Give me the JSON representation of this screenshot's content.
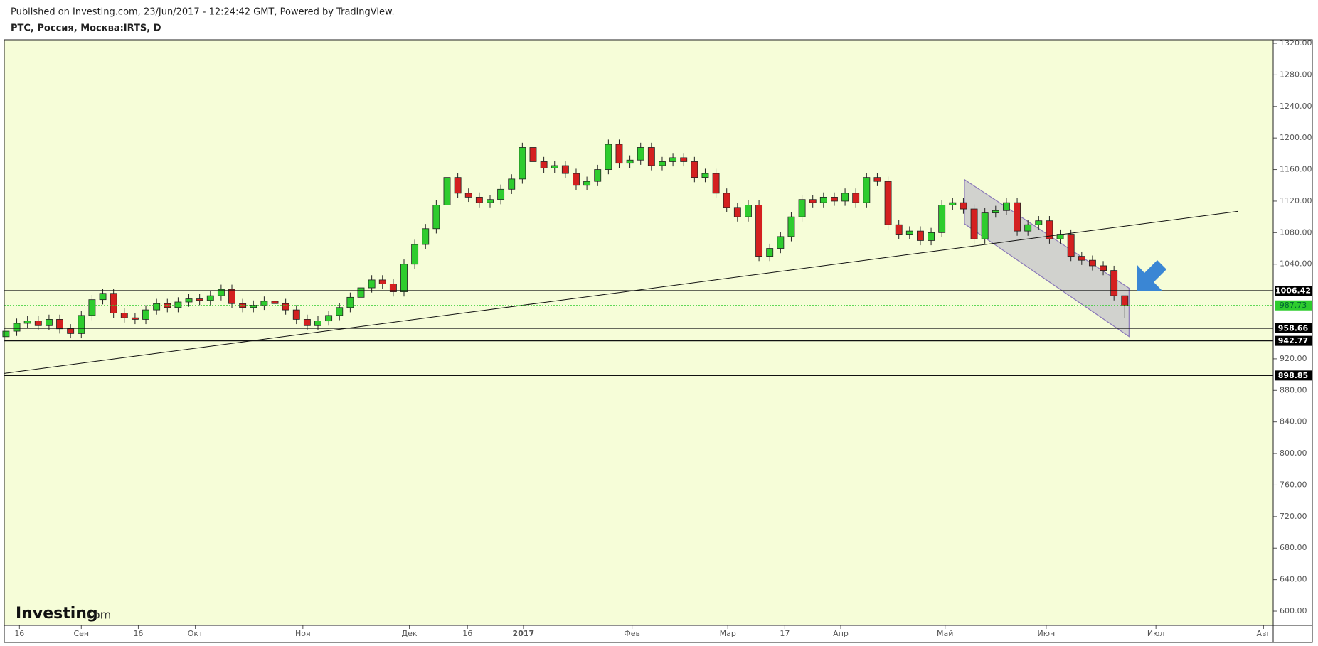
{
  "chart_data": {
    "type": "candlestick",
    "source": "Published on Investing.com, 23/Jun/2017 - 12:24:42 GMT, Powered by TradingView.",
    "title": "РТС, Россия, Москва:IRTS, D",
    "logo_text": "Investing",
    "logo_suffix": ".com",
    "up_color": "#2ecc2e",
    "down_color": "#d42020",
    "background": "#f6fdd8",
    "open": [
      948,
      955,
      965,
      968,
      962,
      970,
      958,
      952,
      975,
      995,
      1003,
      978,
      972,
      970,
      982,
      990,
      985,
      992,
      996,
      994,
      1000,
      1008,
      990,
      985,
      988,
      993,
      990,
      982,
      970,
      962,
      968,
      975,
      985,
      998,
      1010,
      1020,
      1015,
      1005,
      1040,
      1065,
      1085,
      1115,
      1150,
      1130,
      1125,
      1118,
      1122,
      1135,
      1148,
      1188,
      1170,
      1162,
      1165,
      1155,
      1140,
      1145,
      1160,
      1192,
      1168,
      1172,
      1188,
      1165,
      1170,
      1175,
      1170,
      1150,
      1155,
      1130,
      1112,
      1100,
      1115,
      1050,
      1060,
      1075,
      1100,
      1122,
      1118,
      1125,
      1120,
      1130,
      1118,
      1150,
      1145,
      1090,
      1078,
      1082,
      1070,
      1080,
      1115,
      1118,
      1110,
      1072,
      1105,
      1108,
      1118,
      1082,
      1090,
      1095,
      1072,
      1078,
      1050,
      1045,
      1038,
      1032,
      1000
    ],
    "high": [
      961,
      971,
      974,
      974,
      976,
      976,
      964,
      981,
      1001,
      1009,
      1009,
      984,
      978,
      988,
      996,
      996,
      998,
      1002,
      1002,
      1006,
      1014,
      1014,
      996,
      994,
      999,
      999,
      996,
      988,
      976,
      974,
      981,
      991,
      1004,
      1016,
      1026,
      1026,
      1021,
      1046,
      1071,
      1091,
      1121,
      1158,
      1156,
      1136,
      1131,
      1128,
      1141,
      1154,
      1194,
      1194,
      1176,
      1171,
      1171,
      1161,
      1151,
      1166,
      1198,
      1198,
      1178,
      1194,
      1194,
      1176,
      1181,
      1181,
      1176,
      1161,
      1161,
      1136,
      1118,
      1121,
      1121,
      1066,
      1081,
      1106,
      1128,
      1128,
      1131,
      1131,
      1136,
      1136,
      1156,
      1156,
      1151,
      1096,
      1088,
      1088,
      1086,
      1121,
      1124,
      1124,
      1116,
      1111,
      1114,
      1124,
      1124,
      1096,
      1101,
      1101,
      1084,
      1084,
      1056,
      1051,
      1044,
      1038,
      994
    ],
    "low": [
      942,
      949,
      959,
      956,
      956,
      952,
      946,
      946,
      969,
      989,
      972,
      966,
      964,
      964,
      976,
      979,
      979,
      986,
      988,
      988,
      994,
      984,
      979,
      979,
      982,
      984,
      976,
      964,
      956,
      956,
      962,
      969,
      979,
      992,
      1004,
      1009,
      999,
      999,
      1034,
      1059,
      1079,
      1109,
      1124,
      1119,
      1112,
      1112,
      1116,
      1129,
      1142,
      1164,
      1156,
      1156,
      1149,
      1134,
      1134,
      1139,
      1154,
      1162,
      1162,
      1166,
      1159,
      1159,
      1164,
      1164,
      1144,
      1144,
      1124,
      1106,
      1094,
      1094,
      1044,
      1044,
      1054,
      1069,
      1094,
      1112,
      1112,
      1114,
      1114,
      1112,
      1112,
      1139,
      1084,
      1072,
      1072,
      1064,
      1064,
      1074,
      1109,
      1104,
      1066,
      1066,
      1099,
      1102,
      1076,
      1076,
      1084,
      1066,
      1066,
      1044,
      1039,
      1032,
      1026,
      994,
      972
    ],
    "close": [
      955,
      965,
      968,
      962,
      970,
      958,
      952,
      975,
      995,
      1003,
      978,
      972,
      970,
      982,
      990,
      985,
      992,
      996,
      994,
      1000,
      1008,
      990,
      985,
      988,
      993,
      990,
      982,
      970,
      962,
      968,
      975,
      985,
      998,
      1010,
      1020,
      1015,
      1005,
      1040,
      1065,
      1085,
      1115,
      1150,
      1130,
      1125,
      1118,
      1122,
      1135,
      1148,
      1188,
      1170,
      1162,
      1165,
      1155,
      1140,
      1145,
      1160,
      1192,
      1168,
      1172,
      1188,
      1165,
      1170,
      1175,
      1170,
      1150,
      1155,
      1130,
      1112,
      1100,
      1115,
      1050,
      1060,
      1075,
      1100,
      1122,
      1118,
      1125,
      1120,
      1130,
      1118,
      1150,
      1145,
      1090,
      1078,
      1082,
      1070,
      1080,
      1115,
      1118,
      1110,
      1072,
      1105,
      1108,
      1118,
      1082,
      1090,
      1095,
      1072,
      1078,
      1050,
      1045,
      1038,
      1032,
      1000,
      987.73
    ],
    "xlim": [
      -0.16,
      117.8
    ],
    "xticks": [
      {
        "value": 1.25,
        "label": "16"
      },
      {
        "value": 7.0,
        "label": "Сен"
      },
      {
        "value": 12.3,
        "label": "16"
      },
      {
        "value": 17.6,
        "label": "Окт"
      },
      {
        "value": 27.6,
        "label": "Ноя"
      },
      {
        "value": 37.5,
        "label": "Дек"
      },
      {
        "value": 42.9,
        "label": "16"
      },
      {
        "value": 48.1,
        "label": "2017"
      },
      {
        "value": 58.2,
        "label": "Фев"
      },
      {
        "value": 67.1,
        "label": "Мар"
      },
      {
        "value": 72.4,
        "label": "17"
      },
      {
        "value": 77.6,
        "label": "Апр"
      },
      {
        "value": 87.3,
        "label": "Май"
      },
      {
        "value": 96.7,
        "label": "Июн"
      },
      {
        "value": 106.9,
        "label": "Июл"
      },
      {
        "value": 116.9,
        "label": "Авг"
      }
    ],
    "ylim": [
      582,
      1324.5
    ],
    "yticks": [
      {
        "value": 600,
        "label": "600.00"
      },
      {
        "value": 640,
        "label": "640.00"
      },
      {
        "value": 680,
        "label": "680.00"
      },
      {
        "value": 720,
        "label": "720.00"
      },
      {
        "value": 760,
        "label": "760.00"
      },
      {
        "value": 800,
        "label": "800.00"
      },
      {
        "value": 840,
        "label": "840.00"
      },
      {
        "value": 880,
        "label": "880.00"
      },
      {
        "value": 920,
        "label": "920.00"
      },
      {
        "value": 1040,
        "label": "1040.00"
      },
      {
        "value": 1080,
        "label": "1080.00"
      },
      {
        "value": 1120,
        "label": "1120.00"
      },
      {
        "value": 1160,
        "label": "1160.00"
      },
      {
        "value": 1200,
        "label": "1200.00"
      },
      {
        "value": 1240,
        "label": "1240.00"
      },
      {
        "value": 1280,
        "label": "1280.00"
      },
      {
        "value": 1320,
        "label": "1320.00"
      }
    ],
    "levels": [
      1006.42,
      958.66,
      942.77,
      898.85
    ],
    "trendline": {
      "x": [
        -0.16,
        114.5
      ],
      "y": [
        901.6,
        1107
      ]
    },
    "channel": {
      "x": [
        89.1,
        104.4,
        104.4,
        89.1
      ],
      "y": [
        1147.3,
        1009.6,
        948.2,
        1091.2
      ]
    }
  }
}
